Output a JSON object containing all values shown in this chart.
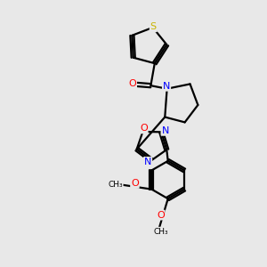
{
  "background_color": "#e8e8e8",
  "bond_color": "#000000",
  "atom_colors": {
    "S": "#c8b400",
    "N": "#0000ff",
    "O": "#ff0000",
    "C": "#000000"
  },
  "figsize": [
    3.0,
    3.0
  ],
  "dpi": 100
}
